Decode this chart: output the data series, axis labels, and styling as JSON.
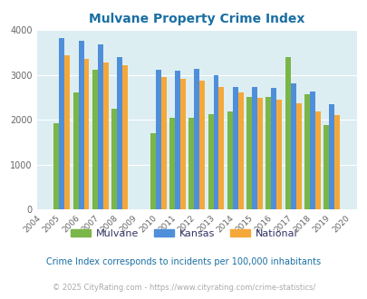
{
  "title": "Mulvane Property Crime Index",
  "years": [
    2004,
    2005,
    2006,
    2007,
    2008,
    2009,
    2010,
    2011,
    2012,
    2013,
    2014,
    2015,
    2016,
    2017,
    2018,
    2019,
    2020
  ],
  "mulvane": [
    null,
    1920,
    2600,
    3110,
    2240,
    null,
    1700,
    2040,
    2040,
    2120,
    2190,
    2510,
    2510,
    3400,
    2560,
    1880,
    null
  ],
  "kansas": [
    null,
    3820,
    3760,
    3670,
    3390,
    null,
    3110,
    3100,
    3140,
    2990,
    2730,
    2730,
    2700,
    2810,
    2620,
    2340,
    null
  ],
  "national": [
    null,
    3430,
    3360,
    3270,
    3210,
    null,
    2940,
    2910,
    2870,
    2730,
    2600,
    2490,
    2450,
    2360,
    2190,
    2110,
    null
  ],
  "mulvane_color": "#7ab648",
  "kansas_color": "#4f8fda",
  "national_color": "#f5a83a",
  "bg_color": "#ddeef3",
  "ylim": [
    0,
    4000
  ],
  "yticks": [
    0,
    1000,
    2000,
    3000,
    4000
  ],
  "footnote1": "Crime Index corresponds to incidents per 100,000 inhabitants",
  "footnote2": "© 2025 CityRating.com - https://www.cityrating.com/crime-statistics/",
  "legend_labels": [
    "Mulvane",
    "Kansas",
    "National"
  ]
}
